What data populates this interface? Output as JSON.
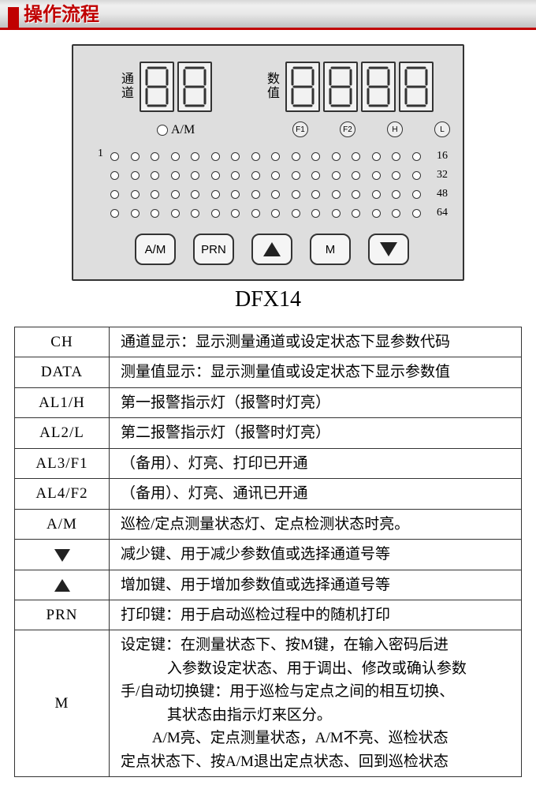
{
  "header": {
    "title": "操作流程"
  },
  "panel": {
    "channel_label": "通道",
    "value_label": "数值",
    "am_label": "A/M",
    "fn_indicators": [
      "F1",
      "F2",
      "H",
      "L"
    ],
    "led_left_label": "1",
    "led_right_labels": [
      "16",
      "32",
      "48",
      "64"
    ],
    "led_cols": 16,
    "led_rows": 4,
    "buttons": {
      "am": "A/M",
      "prn": "PRN",
      "m": "M"
    },
    "colors": {
      "panel_bg": "#dedede",
      "panel_border": "#333333",
      "seg_bg": "#f2f2f2"
    }
  },
  "model": "DFX14",
  "table": {
    "rows": [
      {
        "key": "CH",
        "val": "通道显示：显示测量通道或设定状态下显参数代码"
      },
      {
        "key": "DATA",
        "val": "测量值显示：显示测量值或设定状态下显示参数值"
      },
      {
        "key": "AL1/H",
        "val": "第一报警指示灯（报警时灯亮）"
      },
      {
        "key": "AL2/L",
        "val": "第二报警指示灯（报警时灯亮）"
      },
      {
        "key": "AL3/F1",
        "val": "（备用）、灯亮、打印已开通"
      },
      {
        "key": "AL4/F2",
        "val": "（备用）、灯亮、通讯已开通"
      },
      {
        "key": "A/M",
        "val": "巡检/定点测量状态灯、定点检测状态时亮。"
      },
      {
        "key": "__TRI_DN__",
        "val": "减少键、用于减少参数值或选择通道号等"
      },
      {
        "key": "__TRI_UP__",
        "val": "增加键、用于增加参数值或选择通道号等"
      },
      {
        "key": "PRN",
        "val": "打印键：用于启动巡检过程中的随机打印"
      }
    ],
    "m_row": {
      "key": "M",
      "lines": [
        "设定键：在测量状态下、按M键，在输入密码后进",
        "入参数设定状态、用于调出、修改或确认参数",
        "手/自动切换键：用于巡检与定点之间的相互切换、",
        "其状态由指示灯来区分。",
        "A/M亮、定点测量状态，A/M不亮、巡检状态",
        "定点状态下、按A/M退出定点状态、回到巡检状态"
      ]
    }
  }
}
